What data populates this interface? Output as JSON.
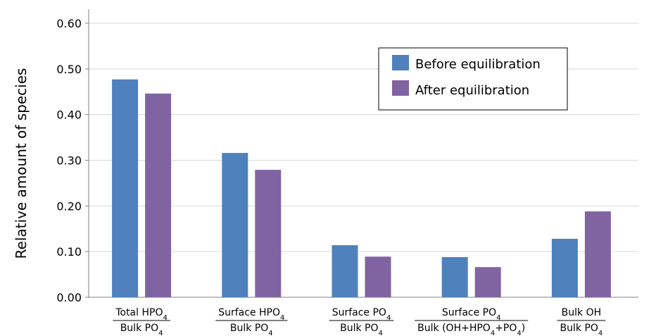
{
  "chart_data": {
    "type": "bar",
    "ylabel": "Relative amount of species",
    "xlabel": "",
    "ylim": [
      0,
      0.6
    ],
    "yticks": [
      "0.00",
      "0.10",
      "0.20",
      "0.30",
      "0.40",
      "0.50",
      "0.60"
    ],
    "grid": true,
    "legend_position": "top-right",
    "categories": [
      {
        "numerator": {
          "text": "Total HPO",
          "sub": "4"
        },
        "denominator": {
          "text": "Bulk PO",
          "sub": "4"
        }
      },
      {
        "numerator": {
          "text": "Surface HPO",
          "sub": "4"
        },
        "denominator": {
          "text": "Bulk PO",
          "sub": "4"
        }
      },
      {
        "numerator": {
          "text": "Surface PO",
          "sub": "4"
        },
        "denominator": {
          "text": "Bulk PO",
          "sub": "4"
        }
      },
      {
        "numerator": {
          "text": "Surface PO",
          "sub": "4"
        },
        "denominator": {
          "text": "Bulk (OH+HPO4+PO4)",
          "sub": ""
        }
      },
      {
        "numerator": {
          "text": "Bulk OH",
          "sub": ""
        },
        "denominator": {
          "text": "Bulk PO",
          "sub": "4"
        }
      }
    ],
    "series": [
      {
        "name": "Before equilibration",
        "color": "#4f81bd",
        "values": [
          0.477,
          0.316,
          0.114,
          0.088,
          0.128
        ]
      },
      {
        "name": "After equilibration",
        "color": "#8064a2",
        "values": [
          0.446,
          0.279,
          0.089,
          0.066,
          0.188
        ]
      }
    ]
  }
}
